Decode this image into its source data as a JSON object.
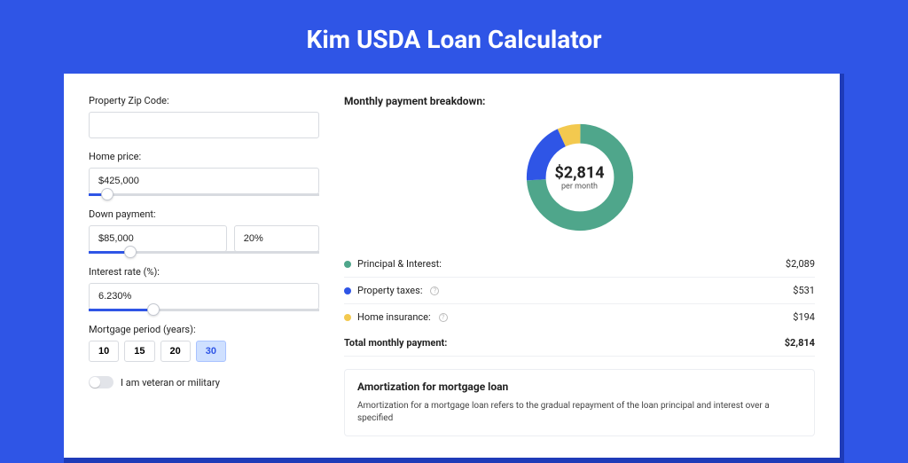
{
  "page": {
    "title": "Kim USDA Loan Calculator",
    "bg_color": "#2f55e6",
    "panel_bg": "#ffffff"
  },
  "form": {
    "zip": {
      "label": "Property Zip Code:",
      "value": ""
    },
    "home_price": {
      "label": "Home price:",
      "value": "$425,000",
      "slider_pct": 8
    },
    "down_payment": {
      "label": "Down payment:",
      "value": "$85,000",
      "pct": "20%",
      "slider_pct": 18
    },
    "interest": {
      "label": "Interest rate (%):",
      "value": "6.230%",
      "slider_pct": 28
    },
    "period": {
      "label": "Mortgage period (years):",
      "options": [
        "10",
        "15",
        "20",
        "30"
      ],
      "active": "30"
    },
    "veteran": {
      "label": "I am veteran or military",
      "on": false
    }
  },
  "breakdown": {
    "title": "Monthly payment breakdown:",
    "amount": "$2,814",
    "per": "per month",
    "donut": {
      "slices": [
        {
          "color": "#4fa68b",
          "pct": 74
        },
        {
          "color": "#2f55e6",
          "pct": 19
        },
        {
          "color": "#f3c94f",
          "pct": 7
        }
      ]
    },
    "rows": [
      {
        "color": "#4fa68b",
        "label": "Principal & Interest:",
        "info": false,
        "value": "$2,089"
      },
      {
        "color": "#2f55e6",
        "label": "Property taxes:",
        "info": true,
        "value": "$531"
      },
      {
        "color": "#f3c94f",
        "label": "Home insurance:",
        "info": true,
        "value": "$194"
      }
    ],
    "total": {
      "label": "Total monthly payment:",
      "value": "$2,814"
    }
  },
  "amort": {
    "title": "Amortization for mortgage loan",
    "text": "Amortization for a mortgage loan refers to the gradual repayment of the loan principal and interest over a specified"
  }
}
